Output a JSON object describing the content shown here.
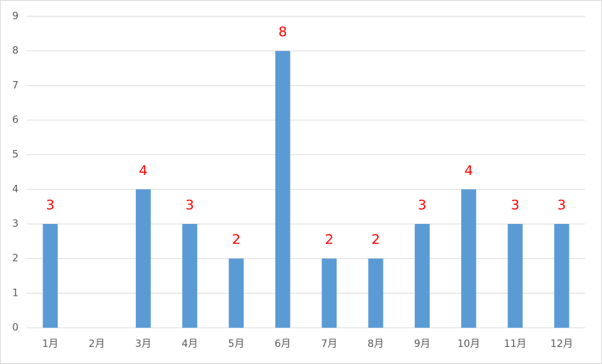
{
  "chart_data": {
    "type": "bar",
    "categories": [
      "1月",
      "2月",
      "3月",
      "4月",
      "5月",
      "6月",
      "7月",
      "8月",
      "9月",
      "10月",
      "11月",
      "12月"
    ],
    "values": [
      3,
      null,
      4,
      3,
      2,
      8,
      2,
      2,
      3,
      4,
      3,
      3
    ],
    "color": "#5b9bd5",
    "label_color": "#ff0000",
    "ylim": [
      0,
      9
    ],
    "yticks": [
      0,
      1,
      2,
      3,
      4,
      5,
      6,
      7,
      8,
      9
    ],
    "grid": true
  }
}
